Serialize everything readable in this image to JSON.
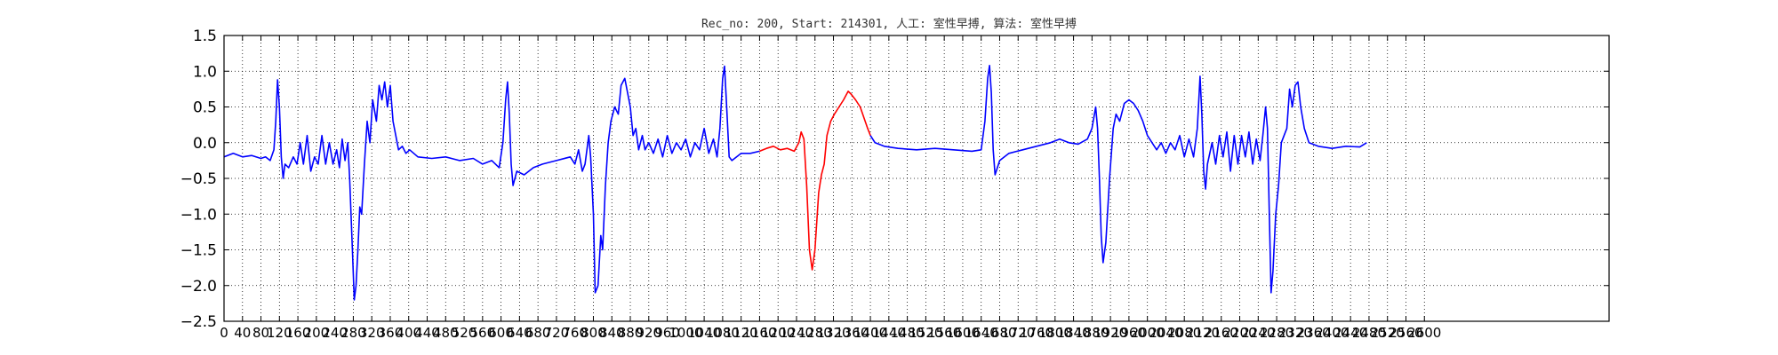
{
  "chart_data": {
    "type": "line",
    "title": "Rec_no: 200, Start: 214301, 人工: 室性早搏, 算法: 室性早搏",
    "xlabel": "",
    "ylabel": "",
    "xlim": [
      0,
      3000
    ],
    "ylim": [
      -2.5,
      1.5
    ],
    "grid": true,
    "yticks": [
      1.5,
      1.0,
      0.5,
      0.0,
      -0.5,
      -1.0,
      -1.5,
      -2.0,
      -2.5
    ],
    "ytick_labels": [
      "1.5",
      "1.0",
      "0.5",
      "0.0",
      "−0.5",
      "−1.0",
      "−1.5",
      "−2.0",
      "−2.5"
    ],
    "xticks": [
      0,
      40,
      80,
      120,
      160,
      200,
      240,
      280,
      320,
      360,
      400,
      440,
      480,
      520,
      560,
      600,
      640,
      680,
      720,
      760,
      800,
      840,
      880,
      920,
      960,
      1000,
      1040,
      1080,
      1120,
      1160,
      1200,
      1240,
      1280,
      1320,
      1360,
      1400,
      1440,
      1480,
      1520,
      1560,
      1600,
      1640,
      1680,
      1720,
      1760,
      1800,
      1840,
      1880,
      1920,
      1960,
      2000,
      2040,
      2080,
      2120,
      2160,
      2200,
      2240,
      2280,
      2320,
      2360,
      2400,
      2440,
      2480,
      2520,
      2560,
      2600
    ],
    "highlight_range": [
      1160,
      1400
    ],
    "series": [
      {
        "color": "#0000ff",
        "points": [
          [
            0,
            -0.2
          ],
          [
            20,
            -0.15
          ],
          [
            40,
            -0.2
          ],
          [
            60,
            -0.18
          ],
          [
            80,
            -0.22
          ],
          [
            90,
            -0.2
          ],
          [
            100,
            -0.25
          ],
          [
            108,
            -0.1
          ],
          [
            112,
            0.3
          ],
          [
            116,
            0.88
          ],
          [
            120,
            0.5
          ],
          [
            124,
            -0.2
          ],
          [
            128,
            -0.5
          ],
          [
            132,
            -0.3
          ],
          [
            140,
            -0.35
          ],
          [
            150,
            -0.2
          ],
          [
            158,
            -0.3
          ],
          [
            165,
            0.0
          ],
          [
            172,
            -0.3
          ],
          [
            180,
            0.1
          ],
          [
            188,
            -0.4
          ],
          [
            196,
            -0.2
          ],
          [
            204,
            -0.3
          ],
          [
            212,
            0.1
          ],
          [
            220,
            -0.3
          ],
          [
            228,
            0.0
          ],
          [
            236,
            -0.3
          ],
          [
            244,
            -0.1
          ],
          [
            250,
            -0.35
          ],
          [
            256,
            0.05
          ],
          [
            262,
            -0.25
          ],
          [
            268,
            0.0
          ],
          [
            272,
            -0.5
          ],
          [
            278,
            -1.5
          ],
          [
            282,
            -2.2
          ],
          [
            286,
            -2.0
          ],
          [
            290,
            -1.5
          ],
          [
            294,
            -0.9
          ],
          [
            298,
            -1.0
          ],
          [
            304,
            -0.3
          ],
          [
            310,
            0.3
          ],
          [
            316,
            0.0
          ],
          [
            322,
            0.6
          ],
          [
            330,
            0.3
          ],
          [
            336,
            0.8
          ],
          [
            342,
            0.6
          ],
          [
            348,
            0.85
          ],
          [
            354,
            0.5
          ],
          [
            360,
            0.8
          ],
          [
            366,
            0.3
          ],
          [
            372,
            0.1
          ],
          [
            378,
            -0.1
          ],
          [
            386,
            -0.05
          ],
          [
            394,
            -0.15
          ],
          [
            402,
            -0.1
          ],
          [
            420,
            -0.2
          ],
          [
            450,
            -0.22
          ],
          [
            480,
            -0.2
          ],
          [
            510,
            -0.25
          ],
          [
            540,
            -0.22
          ],
          [
            560,
            -0.3
          ],
          [
            580,
            -0.25
          ],
          [
            596,
            -0.35
          ],
          [
            604,
            0.0
          ],
          [
            610,
            0.6
          ],
          [
            614,
            0.85
          ],
          [
            618,
            0.4
          ],
          [
            622,
            -0.3
          ],
          [
            626,
            -0.6
          ],
          [
            634,
            -0.4
          ],
          [
            650,
            -0.45
          ],
          [
            670,
            -0.35
          ],
          [
            690,
            -0.3
          ],
          [
            720,
            -0.25
          ],
          [
            750,
            -0.2
          ],
          [
            760,
            -0.3
          ],
          [
            768,
            -0.1
          ],
          [
            776,
            -0.4
          ],
          [
            782,
            -0.3
          ],
          [
            790,
            0.1
          ],
          [
            794,
            -0.2
          ],
          [
            800,
            -1.0
          ],
          [
            804,
            -2.1
          ],
          [
            810,
            -2.0
          ],
          [
            816,
            -1.3
          ],
          [
            820,
            -1.5
          ],
          [
            826,
            -0.6
          ],
          [
            832,
            0.0
          ],
          [
            838,
            0.3
          ],
          [
            846,
            0.5
          ],
          [
            854,
            0.4
          ],
          [
            860,
            0.8
          ],
          [
            868,
            0.9
          ],
          [
            874,
            0.7
          ],
          [
            880,
            0.5
          ],
          [
            886,
            0.1
          ],
          [
            892,
            0.2
          ],
          [
            898,
            -0.1
          ],
          [
            906,
            0.1
          ],
          [
            912,
            -0.1
          ],
          [
            920,
            0.0
          ],
          [
            930,
            -0.15
          ],
          [
            940,
            0.05
          ],
          [
            950,
            -0.2
          ],
          [
            960,
            0.1
          ],
          [
            970,
            -0.15
          ],
          [
            980,
            0.0
          ],
          [
            990,
            -0.1
          ],
          [
            1000,
            0.05
          ],
          [
            1010,
            -0.2
          ],
          [
            1020,
            0.0
          ],
          [
            1030,
            -0.1
          ],
          [
            1040,
            0.2
          ],
          [
            1050,
            -0.15
          ],
          [
            1060,
            0.05
          ],
          [
            1068,
            -0.2
          ],
          [
            1074,
            0.2
          ],
          [
            1080,
            0.9
          ],
          [
            1084,
            1.07
          ],
          [
            1088,
            0.6
          ],
          [
            1094,
            -0.2
          ],
          [
            1100,
            -0.25
          ],
          [
            1120,
            -0.15
          ],
          [
            1140,
            -0.15
          ],
          [
            1160,
            -0.12
          ]
        ]
      },
      {
        "color": "#ff0000",
        "points": [
          [
            1160,
            -0.12
          ],
          [
            1175,
            -0.08
          ],
          [
            1190,
            -0.05
          ],
          [
            1205,
            -0.1
          ],
          [
            1220,
            -0.08
          ],
          [
            1235,
            -0.12
          ],
          [
            1245,
            0.0
          ],
          [
            1250,
            0.15
          ],
          [
            1256,
            0.05
          ],
          [
            1262,
            -0.6
          ],
          [
            1268,
            -1.5
          ],
          [
            1274,
            -1.78
          ],
          [
            1280,
            -1.5
          ],
          [
            1288,
            -0.7
          ],
          [
            1294,
            -0.45
          ],
          [
            1300,
            -0.3
          ],
          [
            1306,
            0.1
          ],
          [
            1314,
            0.3
          ],
          [
            1322,
            0.4
          ],
          [
            1332,
            0.5
          ],
          [
            1342,
            0.6
          ],
          [
            1352,
            0.72
          ],
          [
            1358,
            0.68
          ],
          [
            1368,
            0.6
          ],
          [
            1378,
            0.5
          ],
          [
            1386,
            0.35
          ],
          [
            1394,
            0.2
          ],
          [
            1400,
            0.1
          ]
        ]
      },
      {
        "color": "#0000ff",
        "points": [
          [
            1400,
            0.1
          ],
          [
            1410,
            0.0
          ],
          [
            1430,
            -0.05
          ],
          [
            1460,
            -0.08
          ],
          [
            1500,
            -0.1
          ],
          [
            1540,
            -0.08
          ],
          [
            1580,
            -0.1
          ],
          [
            1620,
            -0.12
          ],
          [
            1640,
            -0.1
          ],
          [
            1648,
            0.3
          ],
          [
            1654,
            0.9
          ],
          [
            1658,
            1.08
          ],
          [
            1662,
            0.7
          ],
          [
            1666,
            -0.1
          ],
          [
            1670,
            -0.45
          ],
          [
            1680,
            -0.25
          ],
          [
            1700,
            -0.15
          ],
          [
            1730,
            -0.1
          ],
          [
            1760,
            -0.05
          ],
          [
            1790,
            0.0
          ],
          [
            1810,
            0.05
          ],
          [
            1830,
            0.0
          ],
          [
            1850,
            -0.02
          ],
          [
            1870,
            0.05
          ],
          [
            1880,
            0.2
          ],
          [
            1888,
            0.5
          ],
          [
            1892,
            0.2
          ],
          [
            1896,
            -0.5
          ],
          [
            1900,
            -1.3
          ],
          [
            1904,
            -1.68
          ],
          [
            1910,
            -1.4
          ],
          [
            1918,
            -0.5
          ],
          [
            1926,
            0.2
          ],
          [
            1932,
            0.4
          ],
          [
            1940,
            0.3
          ],
          [
            1950,
            0.55
          ],
          [
            1960,
            0.6
          ],
          [
            1970,
            0.55
          ],
          [
            1980,
            0.45
          ],
          [
            1990,
            0.3
          ],
          [
            2000,
            0.1
          ],
          [
            2010,
            0.0
          ],
          [
            2020,
            -0.1
          ],
          [
            2030,
            0.0
          ],
          [
            2040,
            -0.15
          ],
          [
            2050,
            0.0
          ],
          [
            2060,
            -0.1
          ],
          [
            2070,
            0.1
          ],
          [
            2080,
            -0.2
          ],
          [
            2090,
            0.05
          ],
          [
            2100,
            -0.2
          ],
          [
            2108,
            0.2
          ],
          [
            2114,
            0.93
          ],
          [
            2118,
            0.4
          ],
          [
            2122,
            -0.4
          ],
          [
            2126,
            -0.65
          ],
          [
            2130,
            -0.3
          ],
          [
            2140,
            0.0
          ],
          [
            2148,
            -0.3
          ],
          [
            2156,
            0.1
          ],
          [
            2164,
            -0.2
          ],
          [
            2172,
            0.15
          ],
          [
            2180,
            -0.4
          ],
          [
            2188,
            0.1
          ],
          [
            2196,
            -0.3
          ],
          [
            2204,
            0.1
          ],
          [
            2212,
            -0.2
          ],
          [
            2220,
            0.15
          ],
          [
            2228,
            -0.3
          ],
          [
            2236,
            0.05
          ],
          [
            2244,
            -0.25
          ],
          [
            2250,
            0.1
          ],
          [
            2256,
            0.5
          ],
          [
            2260,
            0.2
          ],
          [
            2264,
            -1.0
          ],
          [
            2268,
            -2.1
          ],
          [
            2272,
            -1.8
          ],
          [
            2278,
            -1.0
          ],
          [
            2284,
            -0.6
          ],
          [
            2290,
            0.0
          ],
          [
            2296,
            0.1
          ],
          [
            2302,
            0.2
          ],
          [
            2308,
            0.75
          ],
          [
            2314,
            0.5
          ],
          [
            2320,
            0.8
          ],
          [
            2326,
            0.85
          ],
          [
            2332,
            0.5
          ],
          [
            2340,
            0.2
          ],
          [
            2350,
            0.0
          ],
          [
            2370,
            -0.05
          ],
          [
            2400,
            -0.08
          ],
          [
            2430,
            -0.05
          ],
          [
            2460,
            -0.06
          ],
          [
            2475,
            0.0
          ]
        ]
      }
    ]
  }
}
